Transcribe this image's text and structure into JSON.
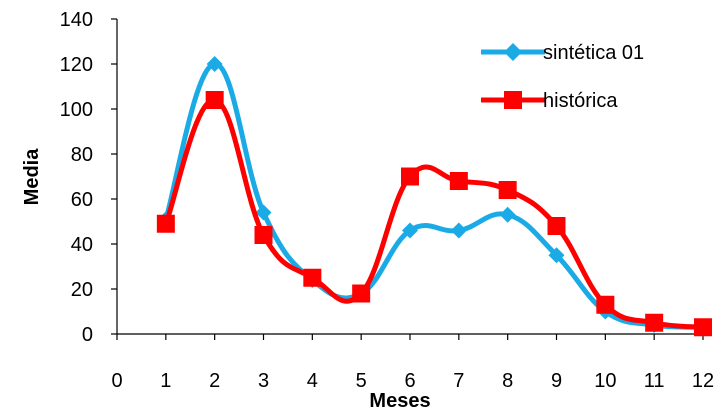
{
  "chart_data": {
    "type": "line",
    "xlabel": "Meses",
    "ylabel": "Media",
    "xlim": [
      0,
      12
    ],
    "ylim": [
      0,
      140
    ],
    "x_ticks": [
      "0",
      "1",
      "2",
      "3",
      "4",
      "5",
      "6",
      "7",
      "8",
      "9",
      "10",
      "11",
      "12"
    ],
    "y_ticks": [
      "0",
      "20",
      "40",
      "60",
      "80",
      "100",
      "120",
      "140"
    ],
    "grid": false,
    "legend_position": "top-right",
    "x": [
      1,
      2,
      3,
      4,
      5,
      6,
      7,
      8,
      9,
      10,
      11,
      12
    ],
    "series": [
      {
        "name": "sintética 01",
        "color": "#1aabe6",
        "marker": "diamond",
        "values": [
          51,
          120,
          54,
          24,
          18,
          46,
          46,
          53,
          35,
          10,
          4,
          3
        ]
      },
      {
        "name": "histórica",
        "color": "#ff0000",
        "marker": "square",
        "values": [
          49,
          104,
          44,
          25,
          18,
          70,
          68,
          64,
          48,
          13,
          5,
          3
        ]
      }
    ]
  }
}
